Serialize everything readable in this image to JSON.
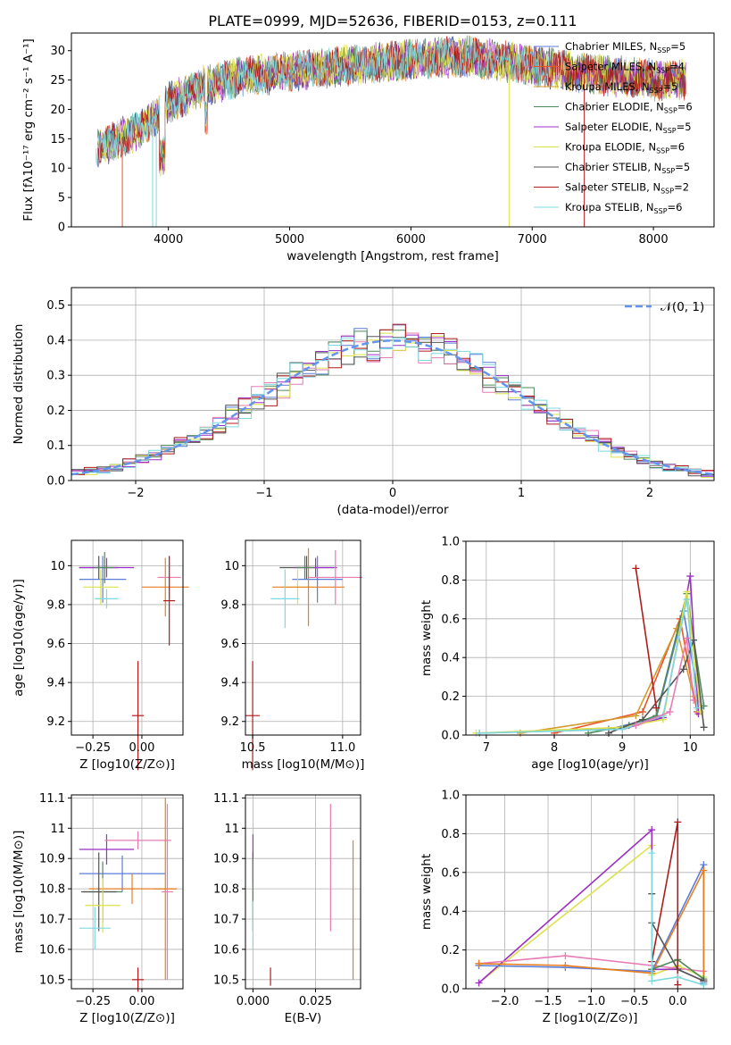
{
  "figure_title": "PLATE=0999, MJD=52636, FIBERID=0153, z=0.111",
  "colors": {
    "chabrier_miles": "#5b7cd8",
    "salpeter_miles": "#e8552a",
    "kroupa_miles": "#d39a2e",
    "chabrier_elodie": "#4e8a5a",
    "salpeter_elodie": "#9b2fc4",
    "kroupa_elodie": "#dde14a",
    "chabrier_stelib": "#555555",
    "salpeter_stelib": "#b01c1c",
    "kroupa_stelib": "#7fd8de",
    "pink": "#e77bb4",
    "orange": "#e67e22",
    "normal_line": "#6495ed"
  },
  "chart_data": [
    {
      "id": "spectrum",
      "type": "line",
      "title": "PLATE=0999, MJD=52636, FIBERID=0153, z=0.111",
      "xlabel": "wavelength [Angstrom, rest frame]",
      "ylabel": "Flux [fλ10⁻¹⁷ erg cm⁻² s⁻¹ A⁻¹]",
      "xlim": [
        3200,
        8500
      ],
      "ylim": [
        0,
        33
      ],
      "xticks": [
        4000,
        5000,
        6000,
        7000,
        8000
      ],
      "yticks": [
        0,
        5,
        10,
        15,
        20,
        25,
        30
      ],
      "grid": false,
      "legend_position": "top-right",
      "continuum": {
        "x": [
          3400,
          3600,
          3800,
          4000,
          4300,
          4600,
          5000,
          5500,
          6000,
          6500,
          7000,
          7500,
          8000,
          8270
        ],
        "y": [
          13,
          15,
          17,
          21,
          24,
          25.5,
          26.5,
          27.5,
          28.5,
          29,
          27.5,
          26,
          25,
          25
        ]
      },
      "series": [
        {
          "name": "Chabrier MILES, N_SSP=5",
          "color_key": "chabrier_miles"
        },
        {
          "name": "Salpeter MILES, N_SSP=4",
          "color_key": "salpeter_miles"
        },
        {
          "name": "Kroupa MILES, N_SSP=5",
          "color_key": "kroupa_miles"
        },
        {
          "name": "Chabrier ELODIE, N_SSP=6",
          "color_key": "chabrier_elodie"
        },
        {
          "name": "Salpeter ELODIE, N_SSP=5",
          "color_key": "salpeter_elodie"
        },
        {
          "name": "Kroupa ELODIE, N_SSP=6",
          "color_key": "kroupa_elodie"
        },
        {
          "name": "Chabrier STELIB, N_SSP=5",
          "color_key": "chabrier_stelib"
        },
        {
          "name": "Salpeter STELIB, N_SSP=2",
          "color_key": "salpeter_stelib"
        },
        {
          "name": "Kroupa STELIB, N_SSP=6",
          "color_key": "kroupa_stelib"
        }
      ]
    },
    {
      "id": "residuals",
      "type": "line",
      "xlabel": "(data-model)/error",
      "ylabel": "Normed distribution",
      "xlim": [
        -2.5,
        2.5
      ],
      "ylim": [
        0,
        0.55
      ],
      "xticks": [
        -2,
        -1,
        0,
        1,
        2
      ],
      "yticks": [
        0.0,
        0.1,
        0.2,
        0.3,
        0.4,
        0.5
      ],
      "grid": true,
      "legend": [
        {
          "name": "N(0,1)",
          "style": "dashed"
        }
      ],
      "legend_position": "top-right",
      "bin_width": 0.1,
      "histogram_colors": [
        "#5b7cd8",
        "#4e8a5a",
        "#e77bb4",
        "#dde14a",
        "#9b2fc4",
        "#b01c1c",
        "#555555",
        "#7fd8de"
      ]
    },
    {
      "id": "age_vs_Z",
      "type": "scatter",
      "xlabel": "Z [log10(Z/Z⊙)]",
      "ylabel": "age [log10(age/yr)]",
      "xlim": [
        -0.36,
        0.21
      ],
      "ylim": [
        9.13,
        10.13
      ],
      "xticks": [
        -0.25,
        0.0
      ],
      "xtick_labels": [
        "−0.25",
        "0.00"
      ],
      "yticks": [
        9.2,
        9.4,
        9.6,
        9.8,
        10.0
      ],
      "grid": true,
      "points": [
        {
          "x": -0.22,
          "y": 9.99,
          "xerr": 0.1,
          "yerr": 0.06,
          "color_key": "chabrier_stelib"
        },
        {
          "x": -0.18,
          "y": 9.99,
          "xerr": 0.14,
          "yerr": 0.05,
          "color_key": "salpeter_elodie"
        },
        {
          "x": -0.2,
          "y": 9.93,
          "xerr": 0.12,
          "yerr": 0.12,
          "color_key": "chabrier_miles"
        },
        {
          "x": -0.21,
          "y": 9.89,
          "xerr": 0.09,
          "yerr": 0.09,
          "color_key": "kroupa_elodie"
        },
        {
          "x": -0.18,
          "y": 9.83,
          "xerr": 0.06,
          "yerr": 0.05,
          "color_key": "kroupa_stelib"
        },
        {
          "x": -0.19,
          "y": 9.99,
          "xerr": 0.05,
          "yerr": 0.08,
          "color_key": "chabrier_elodie"
        },
        {
          "x": 0.12,
          "y": 9.89,
          "xerr": 0.12,
          "yerr": 0.15,
          "color_key": "orange"
        },
        {
          "x": 0.14,
          "y": 9.94,
          "xerr": 0.06,
          "yerr": 0.11,
          "color_key": "pink"
        },
        {
          "x": 0.14,
          "y": 9.82,
          "xerr": 0.03,
          "yerr": 0.23,
          "color_key": "salpeter_stelib"
        },
        {
          "x": -0.02,
          "y": 9.23,
          "xerr": 0.03,
          "yerr": 0.28,
          "color_key": "salpeter_stelib"
        }
      ]
    },
    {
      "id": "age_vs_mass",
      "type": "scatter",
      "xlabel": "mass [log10(M/M⊙)]",
      "xlim": [
        10.46,
        11.1
      ],
      "ylim": [
        9.13,
        10.13
      ],
      "xticks": [
        10.5,
        11.0
      ],
      "xtick_labels": [
        "10.5",
        "11.0"
      ],
      "yticks": [
        9.2,
        9.4,
        9.6,
        9.8,
        10.0
      ],
      "grid": true,
      "points": [
        {
          "x": 10.8,
          "y": 9.99,
          "xerr": 0.15,
          "yerr": 0.06,
          "color_key": "chabrier_stelib"
        },
        {
          "x": 10.85,
          "y": 9.99,
          "xerr": 0.12,
          "yerr": 0.05,
          "color_key": "salpeter_elodie"
        },
        {
          "x": 10.86,
          "y": 9.93,
          "xerr": 0.14,
          "yerr": 0.12,
          "color_key": "chabrier_miles"
        },
        {
          "x": 10.75,
          "y": 9.89,
          "xerr": 0.09,
          "yerr": 0.09,
          "color_key": "kroupa_elodie"
        },
        {
          "x": 10.81,
          "y": 9.89,
          "xerr": 0.2,
          "yerr": 0.2,
          "color_key": "orange"
        },
        {
          "x": 10.96,
          "y": 9.94,
          "xerr": 0.15,
          "yerr": 0.14,
          "color_key": "pink"
        },
        {
          "x": 10.68,
          "y": 9.83,
          "xerr": 0.08,
          "yerr": 0.15,
          "color_key": "kroupa_stelib"
        },
        {
          "x": 10.79,
          "y": 9.99,
          "xerr": 0.05,
          "yerr": 0.06,
          "color_key": "chabrier_elodie"
        },
        {
          "x": 10.5,
          "y": 9.23,
          "xerr": 0.04,
          "yerr": 0.28,
          "color_key": "salpeter_stelib"
        }
      ]
    },
    {
      "id": "weight_vs_age",
      "type": "line",
      "xlabel": "age [log10(age/yr)]",
      "ylabel": "mass weight",
      "xlim": [
        6.7,
        10.35
      ],
      "ylim": [
        0,
        1.0
      ],
      "xticks": [
        7,
        8,
        9,
        10
      ],
      "yticks": [
        0.0,
        0.2,
        0.4,
        0.6,
        0.8,
        1.0
      ],
      "grid": true,
      "series": [
        {
          "color_key": "chabrier_miles",
          "x": [
            6.9,
            8.8,
            9.5,
            9.9,
            10.15
          ],
          "y": [
            0.01,
            0.03,
            0.09,
            0.64,
            0.14
          ]
        },
        {
          "color_key": "salpeter_miles",
          "x": [
            8.0,
            9.3,
            9.85,
            10.1
          ],
          "y": [
            0.01,
            0.12,
            0.6,
            0.12
          ]
        },
        {
          "color_key": "kroupa_miles",
          "x": [
            7.5,
            9.2,
            9.8,
            10.05
          ],
          "y": [
            0.01,
            0.1,
            0.55,
            0.2
          ]
        },
        {
          "color_key": "chabrier_elodie",
          "x": [
            8.5,
            9.1,
            9.5,
            9.95,
            10.2
          ],
          "y": [
            0.01,
            0.05,
            0.1,
            0.73,
            0.15
          ]
        },
        {
          "color_key": "salpeter_elodie",
          "x": [
            9.0,
            9.6,
            10.0,
            10.12
          ],
          "y": [
            0.03,
            0.09,
            0.82,
            0.11
          ]
        },
        {
          "color_key": "kroupa_elodie",
          "x": [
            6.85,
            9.0,
            9.6,
            9.95,
            10.15
          ],
          "y": [
            0.01,
            0.04,
            0.08,
            0.74,
            0.12
          ]
        },
        {
          "color_key": "chabrier_stelib",
          "x": [
            8.8,
            9.3,
            9.9,
            10.05,
            10.2
          ],
          "y": [
            0.01,
            0.08,
            0.34,
            0.49,
            0.04
          ]
        },
        {
          "color_key": "salpeter_stelib",
          "x": [
            9.2,
            9.5
          ],
          "y": [
            0.86,
            0.14
          ]
        },
        {
          "color_key": "kroupa_stelib",
          "x": [
            6.9,
            9.0,
            9.6,
            9.95,
            10.1
          ],
          "y": [
            0.01,
            0.03,
            0.1,
            0.7,
            0.14
          ]
        },
        {
          "color_key": "pink",
          "x": [
            9.2,
            9.7,
            9.95,
            10.05
          ],
          "y": [
            0.05,
            0.12,
            0.5,
            0.18
          ]
        }
      ]
    },
    {
      "id": "mass_vs_Z",
      "type": "scatter",
      "xlabel": "Z [log10(Z/Z⊙)]",
      "ylabel": "mass [log10(M/M⊙)]",
      "xlim": [
        -0.36,
        0.21
      ],
      "ylim": [
        10.47,
        11.11
      ],
      "xticks": [
        -0.25,
        0.0
      ],
      "xtick_labels": [
        "−0.25",
        "0.00"
      ],
      "yticks": [
        10.5,
        10.6,
        10.7,
        10.8,
        10.9,
        11.0,
        11.1
      ],
      "grid": true,
      "points": [
        {
          "x": -0.18,
          "y": 10.93,
          "xerr": 0.14,
          "yerr": 0.05,
          "color_key": "salpeter_elodie"
        },
        {
          "x": -0.02,
          "y": 10.96,
          "xerr": 0.17,
          "yerr": 0.03,
          "color_key": "pink"
        },
        {
          "x": -0.1,
          "y": 10.85,
          "xerr": 0.22,
          "yerr": 0.06,
          "color_key": "chabrier_miles"
        },
        {
          "x": -0.05,
          "y": 10.8,
          "xerr": 0.22,
          "yerr": 0.05,
          "color_key": "orange"
        },
        {
          "x": -0.2,
          "y": 10.79,
          "xerr": 0.1,
          "yerr": 0.1,
          "color_key": "chabrier_elodie"
        },
        {
          "x": -0.22,
          "y": 10.79,
          "xerr": 0.09,
          "yerr": 0.13,
          "color_key": "chabrier_stelib"
        },
        {
          "x": -0.2,
          "y": 10.745,
          "xerr": 0.09,
          "yerr": 0.09,
          "color_key": "kroupa_elodie"
        },
        {
          "x": -0.24,
          "y": 10.67,
          "xerr": 0.08,
          "yerr": 0.07,
          "color_key": "kroupa_stelib"
        },
        {
          "x": 0.12,
          "y": 10.8,
          "xerr": 0.06,
          "yerr": 0.3,
          "color_key": "orange"
        },
        {
          "x": 0.13,
          "y": 10.79,
          "xerr": 0.03,
          "yerr": 0.29,
          "color_key": "pink"
        },
        {
          "x": -0.02,
          "y": 10.5,
          "xerr": 0.03,
          "yerr": 0.04,
          "color_key": "salpeter_stelib"
        }
      ]
    },
    {
      "id": "mass_vs_ebv",
      "type": "scatter",
      "xlabel": "E(B-V)",
      "xlim": [
        -0.003,
        0.043
      ],
      "ylim": [
        10.47,
        11.11
      ],
      "xticks": [
        0.0,
        0.025
      ],
      "xtick_labels": [
        "0.000",
        "0.025"
      ],
      "yticks": [
        10.5,
        10.6,
        10.7,
        10.8,
        10.9,
        11.0,
        11.1
      ],
      "grid": true,
      "points": [
        {
          "x": 0.0,
          "y": 10.9,
          "yerr": 0.08,
          "color_key": "salpeter_elodie"
        },
        {
          "x": 0.0,
          "y": 10.79,
          "yerr": 0.13,
          "color_key": "chabrier_stelib"
        },
        {
          "x": 0.0,
          "y": 10.8,
          "yerr": 0.1,
          "color_key": "chabrier_elodie"
        },
        {
          "x": 0.0,
          "y": 10.68,
          "yerr": 0.08,
          "color_key": "kroupa_stelib"
        },
        {
          "x": 0.007,
          "y": 10.51,
          "yerr": 0.03,
          "color_key": "salpeter_stelib"
        },
        {
          "x": 0.031,
          "y": 10.87,
          "yerr": 0.21,
          "color_key": "pink"
        },
        {
          "x": 0.04,
          "y": 10.73,
          "yerr": 0.23,
          "color_key": "orange"
        }
      ]
    },
    {
      "id": "weight_vs_Z",
      "type": "line",
      "xlabel": "Z [log10(Z/Z⊙)]",
      "ylabel": "mass weight",
      "xlim": [
        -2.45,
        0.42
      ],
      "ylim": [
        0,
        1.0
      ],
      "xticks": [
        -2.0,
        -1.5,
        -1.0,
        -0.5,
        0.0
      ],
      "xtick_labels": [
        "−2.0",
        "−1.5",
        "−1.0",
        "−0.5",
        "0.0"
      ],
      "yticks": [
        0.0,
        0.2,
        0.4,
        0.6,
        0.8,
        1.0
      ],
      "grid": true,
      "series": [
        {
          "color_key": "kroupa_elodie",
          "x": [
            -2.3,
            -0.3,
            -0.3,
            0.0,
            0.3
          ],
          "y": [
            0.03,
            0.74,
            0.07,
            0.12,
            0.06
          ]
        },
        {
          "color_key": "salpeter_elodie",
          "x": [
            -2.3,
            -0.3,
            -0.3,
            0.0,
            0.3
          ],
          "y": [
            0.03,
            0.82,
            0.1,
            0.1,
            0.04
          ]
        },
        {
          "color_key": "pink",
          "x": [
            -2.3,
            -1.3,
            -0.3,
            0.3
          ],
          "y": [
            0.13,
            0.17,
            0.12,
            0.09
          ]
        },
        {
          "color_key": "chabrier_miles",
          "x": [
            -2.3,
            -1.3,
            -0.3,
            0.3,
            0.3
          ],
          "y": [
            0.12,
            0.11,
            0.09,
            0.64,
            0.03
          ]
        },
        {
          "color_key": "orange",
          "x": [
            -2.3,
            -1.3,
            -0.3,
            0.3,
            0.3
          ],
          "y": [
            0.13,
            0.12,
            0.08,
            0.61,
            0.04
          ]
        },
        {
          "color_key": "chabrier_elodie",
          "x": [
            -0.3,
            0.0,
            0.3
          ],
          "y": [
            0.1,
            0.15,
            0.05
          ]
        },
        {
          "color_key": "chabrier_stelib",
          "x": [
            -0.3,
            -0.3,
            0.0,
            0.3
          ],
          "y": [
            0.49,
            0.34,
            0.1,
            0.04
          ]
        },
        {
          "color_key": "salpeter_stelib",
          "x": [
            -0.3,
            0.0,
            0.0
          ],
          "y": [
            0.14,
            0.86,
            0.02
          ]
        },
        {
          "color_key": "kroupa_stelib",
          "x": [
            -0.3,
            -0.3,
            0.0,
            0.3
          ],
          "y": [
            0.7,
            0.04,
            0.06,
            0.02
          ]
        }
      ]
    }
  ]
}
